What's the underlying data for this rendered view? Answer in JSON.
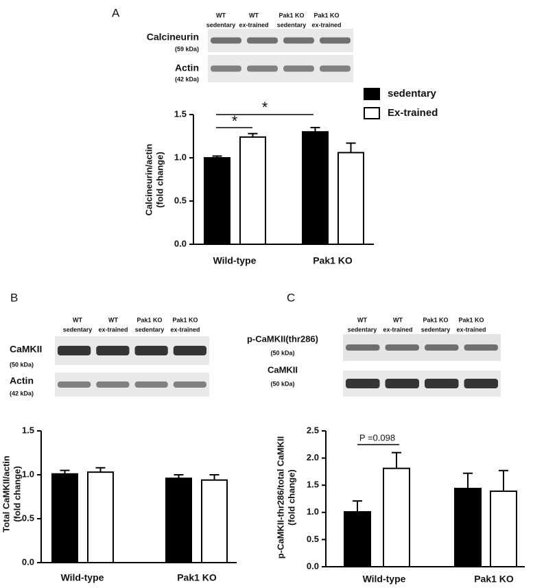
{
  "chart_data": [
    {
      "type": "bar",
      "panel_label": "A",
      "blot": {
        "lanes": [
          [
            "WT",
            "sedentary"
          ],
          [
            "WT",
            "ex-trained"
          ],
          [
            "Pak1 KO",
            "sedentary"
          ],
          [
            "Pak1 KO",
            "ex-trained"
          ]
        ],
        "rows": [
          {
            "name": "Calcineurin",
            "unit": "(59 kDa)"
          },
          {
            "name": "Actin",
            "unit": "(42 kDa)"
          }
        ]
      },
      "ylabel": [
        "Calcineurin/actin",
        "(fold change)"
      ],
      "categories": [
        "Wild-type",
        "Pak1 KO"
      ],
      "series": [
        {
          "name": "sedentary",
          "color": "#000000",
          "values": [
            1.0,
            1.3
          ],
          "errors": [
            0.02,
            0.05
          ]
        },
        {
          "name": "Ex-trained",
          "color": "#ffffff",
          "values": [
            1.24,
            1.06
          ],
          "errors": [
            0.04,
            0.11
          ]
        }
      ],
      "ylim": [
        0,
        1.5
      ],
      "yticks": [
        {
          "value": 0,
          "label": "0.0"
        },
        0.5,
        {
          "value": 1,
          "label": "1.0"
        },
        1.5
      ],
      "legend": true,
      "annotations": [
        {
          "text": "*"
        },
        {
          "text": "*"
        }
      ]
    },
    {
      "type": "bar",
      "panel_label": "B",
      "blot": {
        "lanes": [
          [
            "WT",
            "sedentary"
          ],
          [
            "WT",
            "ex-trained"
          ],
          [
            "Pak1 KO",
            "sedentary"
          ],
          [
            "Pak1 KO",
            "ex-trained"
          ]
        ],
        "rows": [
          {
            "name": "CaMKII",
            "unit": "(50 kDa)"
          },
          {
            "name": "Actin",
            "unit": "(42 kDa)"
          }
        ]
      },
      "ylabel": [
        "Total CaMKII/actin",
        "(fold change)"
      ],
      "categories": [
        "Wild-type",
        "Pak1 KO"
      ],
      "series": [
        {
          "color": "#000000",
          "values": [
            1.01,
            0.96
          ],
          "errors": [
            0.04,
            0.04
          ]
        },
        {
          "color": "#ffffff",
          "values": [
            1.03,
            0.94
          ],
          "errors": [
            0.05,
            0.06
          ]
        }
      ],
      "ylim": [
        0,
        1.5
      ],
      "yticks": [
        {
          "value": 0,
          "label": "0.0"
        },
        0.5,
        {
          "value": 1,
          "label": "1.0"
        },
        1.5
      ],
      "legend": false,
      "annotations": []
    },
    {
      "type": "bar",
      "panel_label": "C",
      "blot": {
        "lanes": [
          [
            "WT",
            "sedentary"
          ],
          [
            "WT",
            "ex-trained"
          ],
          [
            "Pak1 KO",
            "sedentary"
          ],
          [
            "Pak1 KO",
            "ex-trained"
          ]
        ],
        "rows": [
          {
            "name": "p-CaMKII(thr286)",
            "unit": "(50 kDa)"
          },
          {
            "name": "CaMKII",
            "unit": "(50 kDa)"
          }
        ]
      },
      "ylabel": [
        "p-CaMKII-thr286/total CaMKII",
        "(fold change)"
      ],
      "categories": [
        "Wild-type",
        "Pak1 KO"
      ],
      "series": [
        {
          "color": "#000000",
          "values": [
            1.01,
            1.44
          ],
          "errors": [
            0.2,
            0.28
          ]
        },
        {
          "color": "#ffffff",
          "values": [
            1.81,
            1.39
          ],
          "errors": [
            0.29,
            0.38
          ]
        }
      ],
      "ylim": [
        0,
        2.5
      ],
      "yticks": [
        {
          "value": 0,
          "label": "0.0"
        },
        0.5,
        {
          "value": 1,
          "label": "1.0"
        },
        1.5,
        {
          "value": 2,
          "label": "2.0"
        },
        2.5
      ],
      "legend": false,
      "annotations": [
        {
          "text": "P =0.098"
        }
      ]
    }
  ]
}
